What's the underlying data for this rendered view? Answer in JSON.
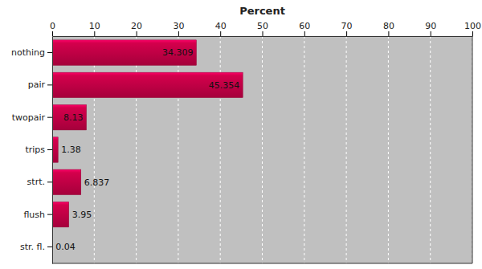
{
  "chart_data": {
    "type": "bar",
    "orientation": "horizontal",
    "xlabel": "Percent",
    "categories": [
      "nothing",
      "pair",
      "twopair",
      "trips",
      "strt.",
      "flush",
      "str. fl."
    ],
    "values": [
      34.309,
      45.354,
      8.13,
      1.38,
      6.837,
      3.95,
      0.04
    ],
    "color": "#d4004c",
    "xlim": [
      0,
      100
    ],
    "xticks": [
      0,
      10,
      20,
      30,
      40,
      50,
      60,
      70,
      80,
      90,
      100
    ],
    "grid": true,
    "data_labels": true
  }
}
